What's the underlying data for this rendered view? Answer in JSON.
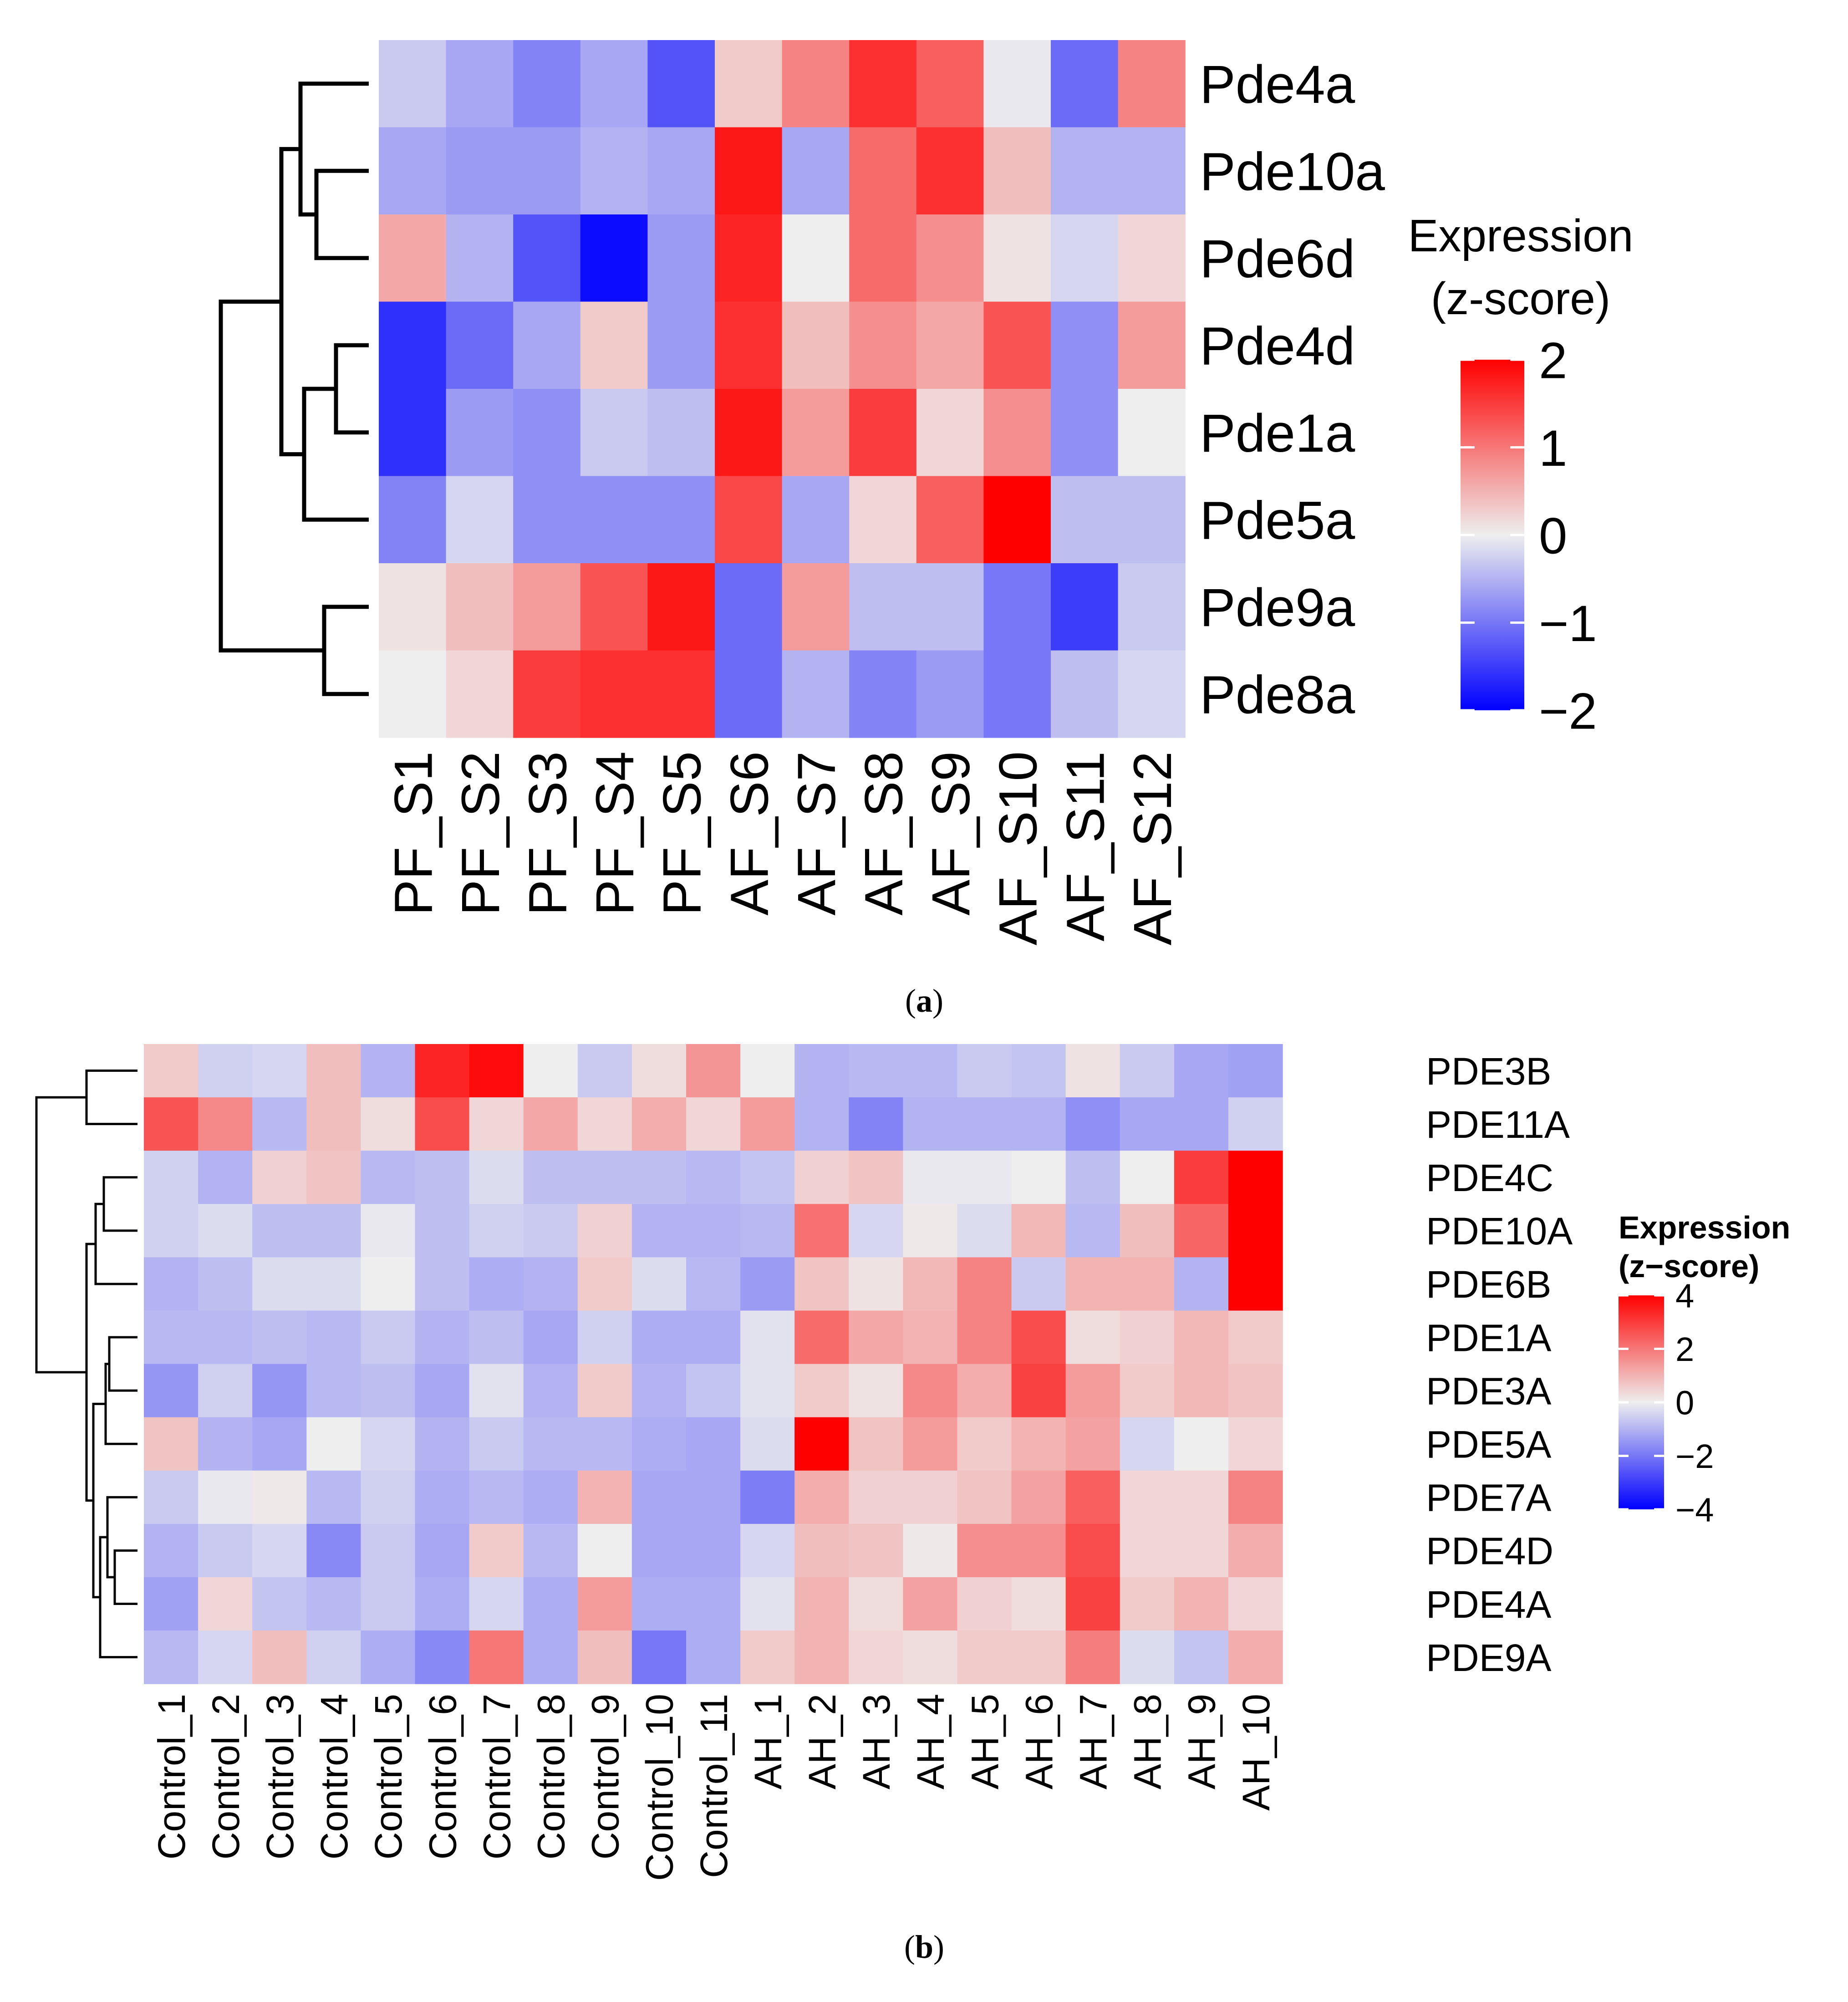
{
  "chart_data": [
    {
      "type": "heatmap",
      "panel_label": "a",
      "legend_title": [
        "Expression",
        "(z-score)"
      ],
      "color_range": [
        -2,
        2
      ],
      "legend_ticks": [
        "2",
        "1",
        "0",
        "−1",
        "−2"
      ],
      "legend_tick_values": [
        2,
        1,
        0,
        -1,
        -2
      ],
      "colors": {
        "low": "#0000ff",
        "mid": "#eeeeee",
        "high": "#ff0000"
      },
      "columns": [
        "PF_S1",
        "PF_S2",
        "PF_S3",
        "PF_S4",
        "PF_S5",
        "AF_S6",
        "AF_S7",
        "AF_S8",
        "AF_S9",
        "AF_S10",
        "AF_S11",
        "AF_S12"
      ],
      "rows": [
        "Pde4a",
        "Pde10a",
        "Pde6d",
        "Pde4d",
        "Pde1a",
        "Pde5a",
        "Pde9a",
        "Pde8a"
      ],
      "values": [
        [
          -0.3,
          -0.6,
          -0.9,
          -0.6,
          -1.3,
          0.3,
          0.9,
          1.6,
          1.2,
          -0.05,
          -1.1,
          0.9
        ],
        [
          -0.6,
          -0.7,
          -0.7,
          -0.5,
          -0.6,
          1.8,
          -0.6,
          1.1,
          1.6,
          0.4,
          -0.5,
          -0.5
        ],
        [
          0.6,
          -0.5,
          -1.3,
          -1.9,
          -0.7,
          1.7,
          0.0,
          1.1,
          0.8,
          0.1,
          -0.2,
          0.2
        ],
        [
          -1.6,
          -1.1,
          -0.6,
          0.3,
          -0.7,
          1.6,
          0.4,
          0.8,
          0.6,
          1.3,
          -0.8,
          0.7
        ],
        [
          -1.6,
          -0.7,
          -0.8,
          -0.3,
          -0.4,
          1.8,
          0.7,
          1.5,
          0.2,
          0.8,
          -0.8,
          0.0
        ],
        [
          -0.9,
          -0.2,
          -0.8,
          -0.8,
          -0.8,
          1.4,
          -0.6,
          0.2,
          1.2,
          2.3,
          -0.4,
          -0.4
        ],
        [
          0.1,
          0.4,
          0.7,
          1.3,
          1.8,
          -1.1,
          0.7,
          -0.4,
          -0.4,
          -1.0,
          -1.5,
          -0.3
        ],
        [
          0.0,
          0.2,
          1.5,
          1.6,
          1.6,
          -1.1,
          -0.5,
          -0.9,
          -0.7,
          -1.0,
          -0.4,
          -0.2
        ]
      ],
      "row_dendrogram": {
        "merges": [
          [
            "Pde10a",
            "Pde6d"
          ],
          [
            "Pde4d",
            "Pde1a"
          ],
          [
            "Pde9a",
            "Pde8a"
          ],
          [
            "Pde4a",
            "Pde10a+Pde6d"
          ],
          [
            "Pde4d+Pde1a",
            "Pde5a"
          ],
          [
            "Pde4a+Pde10a+Pde6d",
            "Pde4d+Pde1a+Pde5a"
          ],
          [
            "Pde4a..Pde5a",
            "Pde9a+Pde8a"
          ]
        ]
      }
    },
    {
      "type": "heatmap",
      "panel_label": "b",
      "legend_title": [
        "Expression",
        "(z−score)"
      ],
      "color_range": [
        -4,
        4
      ],
      "legend_ticks": [
        "4",
        "2",
        "0",
        "−2",
        "−4"
      ],
      "legend_tick_values": [
        4,
        2,
        0,
        -2,
        -4
      ],
      "colors": {
        "low": "#0000ff",
        "mid": "#eeeeee",
        "high": "#ff0000"
      },
      "columns": [
        "Control_1",
        "Control_2",
        "Control_3",
        "Control_4",
        "Control_5",
        "Control_6",
        "Control_7",
        "Control_8",
        "Control_9",
        "Control_10",
        "Control_11",
        "AH_1",
        "AH_2",
        "AH_3",
        "AH_4",
        "AH_5",
        "AH_6",
        "AH_7",
        "AH_8",
        "AH_9",
        "AH_10"
      ],
      "rows": [
        "PDE3B",
        "PDE11A",
        "PDE4C",
        "PDE10A",
        "PDE6B",
        "PDE1A",
        "PDE3A",
        "PDE5A",
        "PDE7A",
        "PDE4D",
        "PDE4A",
        "PDE9A"
      ],
      "values": [
        [
          0.6,
          -0.5,
          -0.4,
          0.8,
          -1.0,
          3.4,
          3.8,
          0.0,
          -0.6,
          0.3,
          1.5,
          0.0,
          -1.0,
          -0.9,
          -0.9,
          -0.6,
          -0.7,
          0.2,
          -0.6,
          -1.2,
          -1.3
        ],
        [
          2.6,
          1.7,
          -0.9,
          0.8,
          0.3,
          2.7,
          0.4,
          1.2,
          0.4,
          1.1,
          0.4,
          1.4,
          -1.0,
          -1.8,
          -1.0,
          -1.0,
          -1.0,
          -1.6,
          -1.2,
          -1.2,
          -0.5
        ],
        [
          -0.5,
          -1.0,
          0.5,
          0.7,
          -0.9,
          -0.8,
          -0.3,
          -0.8,
          -0.8,
          -0.8,
          -0.9,
          -0.7,
          0.5,
          0.7,
          -0.1,
          -0.1,
          0.0,
          -0.8,
          0.0,
          3.0,
          4.0
        ],
        [
          -0.5,
          -0.3,
          -0.8,
          -0.8,
          -0.1,
          -0.8,
          -0.5,
          -0.6,
          0.5,
          -1.0,
          -1.0,
          -0.9,
          2.1,
          -0.4,
          0.1,
          -0.3,
          0.9,
          -0.9,
          0.8,
          2.3,
          4.0
        ],
        [
          -1.0,
          -0.8,
          -0.3,
          -0.3,
          0.0,
          -0.8,
          -1.1,
          -1.0,
          0.6,
          -0.3,
          -0.9,
          -1.4,
          0.7,
          0.2,
          0.9,
          1.8,
          -0.6,
          1.0,
          1.0,
          -1.0,
          4.0
        ],
        [
          -0.9,
          -0.9,
          -0.8,
          -0.9,
          -0.6,
          -1.0,
          -0.8,
          -1.2,
          -0.5,
          -1.1,
          -1.1,
          -0.2,
          2.2,
          1.2,
          1.0,
          1.8,
          2.7,
          0.3,
          0.5,
          0.9,
          0.6
        ],
        [
          -1.5,
          -0.5,
          -1.5,
          -0.9,
          -0.8,
          -1.2,
          -0.2,
          -1.0,
          0.6,
          -1.0,
          -0.7,
          -0.2,
          0.6,
          0.2,
          1.7,
          1.1,
          2.9,
          1.4,
          0.6,
          0.9,
          0.7
        ],
        [
          0.7,
          -1.0,
          -1.2,
          0.0,
          -0.4,
          -1.0,
          -0.6,
          -0.9,
          -0.9,
          -1.1,
          -1.2,
          -0.3,
          4.0,
          0.7,
          1.4,
          0.6,
          1.0,
          1.3,
          -0.4,
          0.0,
          0.4
        ],
        [
          -0.6,
          -0.1,
          0.1,
          -0.9,
          -0.5,
          -1.1,
          -0.9,
          -1.1,
          1.0,
          -1.2,
          -1.2,
          -1.9,
          1.1,
          0.5,
          0.5,
          0.7,
          1.3,
          2.4,
          0.4,
          0.4,
          1.8
        ],
        [
          -1.0,
          -0.6,
          -0.4,
          -1.7,
          -0.6,
          -1.2,
          0.6,
          -0.9,
          0.0,
          -1.2,
          -1.2,
          -0.4,
          0.8,
          0.7,
          0.1,
          1.6,
          1.6,
          2.7,
          0.4,
          0.4,
          1.1
        ],
        [
          -1.3,
          0.4,
          -0.7,
          -0.9,
          -0.6,
          -1.1,
          -0.4,
          -1.1,
          1.4,
          -1.1,
          -1.1,
          -0.2,
          1.0,
          0.3,
          1.3,
          0.5,
          0.3,
          2.9,
          0.6,
          1.0,
          0.4
        ],
        [
          -0.9,
          -0.4,
          0.8,
          -0.5,
          -1.1,
          -1.7,
          2.0,
          -1.1,
          0.8,
          -2.0,
          -1.1,
          0.6,
          1.0,
          0.4,
          0.3,
          0.6,
          0.6,
          1.9,
          -0.3,
          -0.7,
          1.1
        ]
      ],
      "row_dendrogram": {
        "merges": [
          [
            "PDE3B",
            "PDE11A"
          ],
          [
            "PDE4C",
            "PDE10A"
          ],
          [
            "PDE4C+PDE10A",
            "PDE6B"
          ],
          [
            "PDE1A",
            "PDE3A"
          ],
          [
            "PDE1A+PDE3A",
            "PDE5A"
          ],
          [
            "PDE4D",
            "PDE4A"
          ],
          [
            "PDE7A",
            "PDE4D+PDE4A"
          ],
          [
            "PDE7A+PDE4D+PDE4A",
            "PDE9A"
          ],
          [
            "PDE1A..PDE5A",
            "PDE7A..PDE9A"
          ],
          [
            "PDE4C..PDE6B",
            "PDE1A..PDE9A"
          ],
          [
            "PDE3B+PDE11A",
            "PDE4C..PDE9A"
          ]
        ]
      }
    }
  ]
}
